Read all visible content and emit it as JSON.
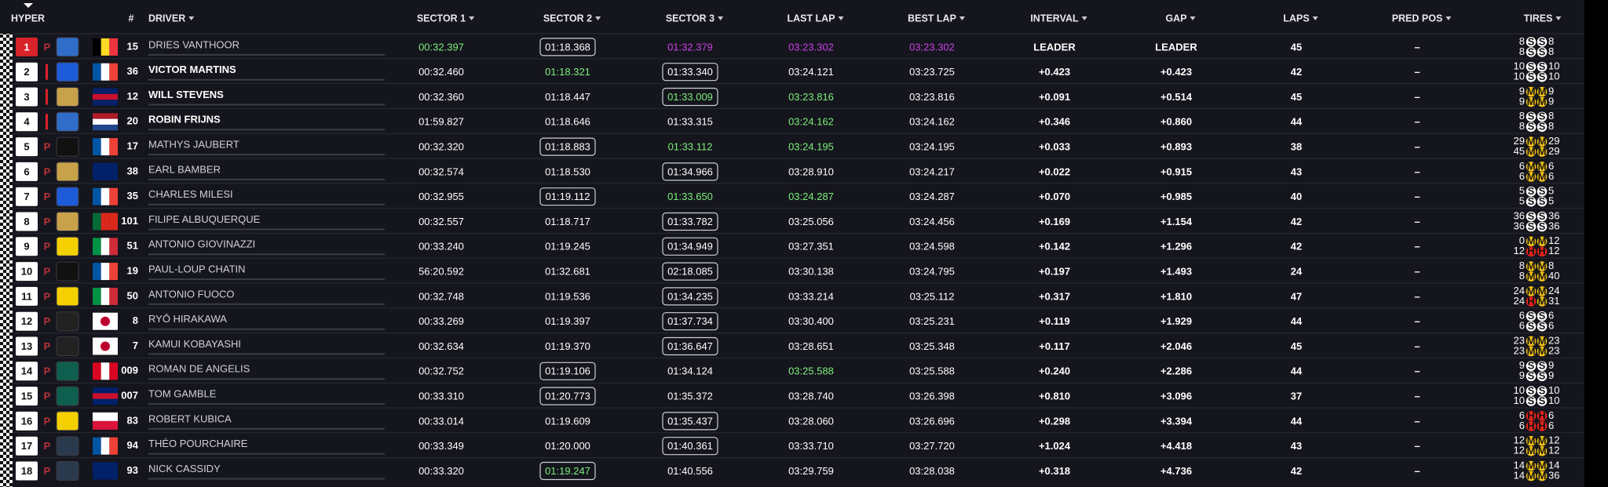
{
  "header": {
    "class": "HYPER",
    "columns": [
      "#",
      "DRIVER",
      "SECTOR 1",
      "SECTOR 2",
      "SECTOR 3",
      "LAST LAP",
      "BEST LAP",
      "INTERVAL",
      "GAP",
      "LAPS",
      "PRED POS",
      "TIRES"
    ]
  },
  "compound_colors": {
    "S": "#ffffff",
    "M": "#f2c318",
    "H": "#e3231b"
  },
  "rows": [
    {
      "pos": "1",
      "pos_color": "#d8232a",
      "pit": "P",
      "logo": "#2f6dc8",
      "flag": [
        "#000000",
        "#fdda24",
        "#ef3340"
      ],
      "flag_dir": "v",
      "num": "15",
      "driver": "DRIES VANTHOOR",
      "times": [
        "00:32.397",
        "01:18.368",
        "01:32.379",
        "03:23.302",
        "03:23.302"
      ],
      "colors": [
        "#7cf07c",
        null,
        "#c940e6",
        "#c940e6",
        "#c940e6"
      ],
      "boxed": [
        false,
        true,
        false,
        false,
        false
      ],
      "interval": "LEADER",
      "gap": "LEADER",
      "laps": "45",
      "pred": "–",
      "tires": [
        [
          "8",
          "S",
          "S",
          "8"
        ],
        [
          "8",
          "S",
          "S",
          "8"
        ]
      ]
    },
    {
      "pos": "2",
      "pit": null,
      "logo": "#1e5bd8",
      "flag": [
        "#0055a4",
        "#ffffff",
        "#ef4135"
      ],
      "flag_dir": "v",
      "num": "36",
      "driver": "VICTOR MARTINS",
      "times": [
        "00:32.460",
        "01:18.321",
        "01:33.340",
        "03:24.121",
        "03:23.725"
      ],
      "colors": [
        null,
        "#7cf07c",
        null,
        null,
        null
      ],
      "boxed": [
        false,
        false,
        true,
        false,
        false
      ],
      "interval": "+0.423",
      "gap": "+0.423",
      "laps": "42",
      "pred": "–",
      "tires": [
        [
          "10",
          "S",
          "S",
          "10"
        ],
        [
          "10",
          "S",
          "S",
          "10"
        ]
      ]
    },
    {
      "pos": "3",
      "pit": null,
      "logo": "#c8a24a",
      "flag": [
        "#012169",
        "#c8102e",
        "#012169"
      ],
      "flag_dir": "h",
      "num": "12",
      "driver": "WILL STEVENS",
      "times": [
        "00:32.360",
        "01:18.447",
        "01:33.009",
        "03:23.816",
        "03:23.816"
      ],
      "colors": [
        null,
        null,
        "#7cf07c",
        "#7cf07c",
        null
      ],
      "boxed": [
        false,
        false,
        true,
        false,
        false
      ],
      "interval": "+0.091",
      "gap": "+0.514",
      "laps": "45",
      "pred": "–",
      "tires": [
        [
          "9",
          "M",
          "M",
          "9"
        ],
        [
          "9",
          "M",
          "M",
          "9"
        ]
      ]
    },
    {
      "pos": "4",
      "pit": null,
      "logo": "#2f6dc8",
      "flag": [
        "#ae1c28",
        "#ffffff",
        "#21468b"
      ],
      "flag_dir": "h",
      "num": "20",
      "driver": "ROBIN FRIJNS",
      "times": [
        "01:59.827",
        "01:18.646",
        "01:33.315",
        "03:24.162",
        "03:24.162"
      ],
      "colors": [
        null,
        null,
        null,
        "#7cf07c",
        null
      ],
      "boxed": [
        false,
        false,
        false,
        false,
        false
      ],
      "interval": "+0.346",
      "gap": "+0.860",
      "laps": "44",
      "pred": "–",
      "tires": [
        [
          "8",
          "S",
          "S",
          "8"
        ],
        [
          "8",
          "S",
          "S",
          "8"
        ]
      ]
    },
    {
      "pos": "5",
      "pit": "P",
      "logo": "#111111",
      "flag": [
        "#0055a4",
        "#ffffff",
        "#ef4135"
      ],
      "flag_dir": "v",
      "num": "17",
      "driver": "MATHYS JAUBERT",
      "times": [
        "00:32.320",
        "01:18.883",
        "01:33.112",
        "03:24.195",
        "03:24.195"
      ],
      "colors": [
        null,
        null,
        "#7cf07c",
        "#7cf07c",
        null
      ],
      "boxed": [
        false,
        true,
        false,
        false,
        false
      ],
      "interval": "+0.033",
      "gap": "+0.893",
      "laps": "38",
      "pred": "–",
      "tires": [
        [
          "29",
          "M",
          "M",
          "29"
        ],
        [
          "45",
          "M",
          "M",
          "29"
        ]
      ]
    },
    {
      "pos": "6",
      "pit": "P",
      "logo": "#c8a24a",
      "flag": [
        "#012169"
      ],
      "flag_dir": "h",
      "num": "38",
      "driver": "EARL BAMBER",
      "times": [
        "00:32.574",
        "01:18.530",
        "01:34.966",
        "03:28.910",
        "03:24.217"
      ],
      "colors": [
        null,
        null,
        null,
        null,
        null
      ],
      "boxed": [
        false,
        false,
        true,
        false,
        false
      ],
      "interval": "+0.022",
      "gap": "+0.915",
      "laps": "43",
      "pred": "–",
      "tires": [
        [
          "6",
          "M",
          "M",
          "6"
        ],
        [
          "6",
          "M",
          "M",
          "6"
        ]
      ]
    },
    {
      "pos": "7",
      "pit": "P",
      "logo": "#1e5bd8",
      "flag": [
        "#0055a4",
        "#ffffff",
        "#ef4135"
      ],
      "flag_dir": "v",
      "num": "35",
      "driver": "CHARLES MILESI",
      "times": [
        "00:32.955",
        "01:19.112",
        "01:33.650",
        "03:24.287",
        "03:24.287"
      ],
      "colors": [
        null,
        null,
        "#7cf07c",
        "#7cf07c",
        null
      ],
      "boxed": [
        false,
        true,
        false,
        false,
        false
      ],
      "interval": "+0.070",
      "gap": "+0.985",
      "laps": "40",
      "pred": "–",
      "tires": [
        [
          "5",
          "S",
          "S",
          "5"
        ],
        [
          "5",
          "S",
          "S",
          "5"
        ]
      ]
    },
    {
      "pos": "8",
      "pit": "P",
      "logo": "#c8a24a",
      "flag": [
        "#046a38",
        "#da291c",
        "#da291c"
      ],
      "flag_dir": "v",
      "num": "101",
      "driver": "FILIPE ALBUQUERQUE",
      "times": [
        "00:32.557",
        "01:18.717",
        "01:33.782",
        "03:25.056",
        "03:24.456"
      ],
      "colors": [
        null,
        null,
        null,
        null,
        null
      ],
      "boxed": [
        false,
        false,
        true,
        false,
        false
      ],
      "interval": "+0.169",
      "gap": "+1.154",
      "laps": "42",
      "pred": "–",
      "tires": [
        [
          "36",
          "S",
          "S",
          "36"
        ],
        [
          "36",
          "S",
          "S",
          "36"
        ]
      ]
    },
    {
      "pos": "9",
      "pit": "P",
      "logo": "#f5d000",
      "flag": [
        "#009246",
        "#ffffff",
        "#ce2b37"
      ],
      "flag_dir": "v",
      "num": "51",
      "driver": "ANTONIO GIOVINAZZI",
      "times": [
        "00:33.240",
        "01:19.245",
        "01:34.949",
        "03:27.351",
        "03:24.598"
      ],
      "colors": [
        null,
        null,
        null,
        null,
        null
      ],
      "boxed": [
        false,
        false,
        true,
        false,
        false
      ],
      "interval": "+0.142",
      "gap": "+1.296",
      "laps": "42",
      "pred": "–",
      "tires": [
        [
          "0",
          "M",
          "M",
          "12"
        ],
        [
          "12",
          "H",
          "H",
          "12"
        ]
      ]
    },
    {
      "pos": "10",
      "pit": "P",
      "logo": "#111111",
      "flag": [
        "#0055a4",
        "#ffffff",
        "#ef4135"
      ],
      "flag_dir": "v",
      "num": "19",
      "driver": "PAUL-LOUP CHATIN",
      "times": [
        "56:20.592",
        "01:32.681",
        "02:18.085",
        "03:30.138",
        "03:24.795"
      ],
      "colors": [
        null,
        null,
        null,
        null,
        null
      ],
      "boxed": [
        false,
        false,
        true,
        false,
        false
      ],
      "interval": "+0.197",
      "gap": "+1.493",
      "laps": "24",
      "pred": "–",
      "tires": [
        [
          "8",
          "M",
          "M",
          "8"
        ],
        [
          "8",
          "M",
          "M",
          "40"
        ]
      ]
    },
    {
      "pos": "11",
      "pit": "P",
      "logo": "#f5d000",
      "flag": [
        "#009246",
        "#ffffff",
        "#ce2b37"
      ],
      "flag_dir": "v",
      "num": "50",
      "driver": "ANTONIO FUOCO",
      "times": [
        "00:32.748",
        "01:19.536",
        "01:34.235",
        "03:33.214",
        "03:25.112"
      ],
      "colors": [
        null,
        null,
        null,
        null,
        null
      ],
      "boxed": [
        false,
        false,
        true,
        false,
        false
      ],
      "interval": "+0.317",
      "gap": "+1.810",
      "laps": "47",
      "pred": "–",
      "tires": [
        [
          "24",
          "M",
          "M",
          "24"
        ],
        [
          "24",
          "H",
          "M",
          "31"
        ]
      ]
    },
    {
      "pos": "12",
      "pit": "P",
      "logo": "#222222",
      "flag": [
        "#ffffff",
        "#bc002d"
      ],
      "flag_dir": "c",
      "num": "8",
      "driver": "RYŌ HIRAKAWA",
      "times": [
        "00:33.269",
        "01:19.397",
        "01:37.734",
        "03:30.400",
        "03:25.231"
      ],
      "colors": [
        null,
        null,
        null,
        null,
        null
      ],
      "boxed": [
        false,
        false,
        true,
        false,
        false
      ],
      "interval": "+0.119",
      "gap": "+1.929",
      "laps": "44",
      "pred": "–",
      "tires": [
        [
          "6",
          "S",
          "S",
          "6"
        ],
        [
          "6",
          "S",
          "S",
          "6"
        ]
      ]
    },
    {
      "pos": "13",
      "pit": "P",
      "logo": "#222222",
      "flag": [
        "#ffffff",
        "#bc002d"
      ],
      "flag_dir": "c",
      "num": "7",
      "driver": "KAMUI KOBAYASHI",
      "times": [
        "00:32.634",
        "01:19.370",
        "01:36.647",
        "03:28.651",
        "03:25.348"
      ],
      "colors": [
        null,
        null,
        null,
        null,
        null
      ],
      "boxed": [
        false,
        false,
        true,
        false,
        false
      ],
      "interval": "+0.117",
      "gap": "+2.046",
      "laps": "45",
      "pred": "–",
      "tires": [
        [
          "23",
          "M",
          "M",
          "23"
        ],
        [
          "23",
          "M",
          "M",
          "23"
        ]
      ]
    },
    {
      "pos": "14",
      "pit": "P",
      "logo": "#0f5f4f",
      "flag": [
        "#d80621",
        "#ffffff",
        "#d80621"
      ],
      "flag_dir": "v",
      "num": "009",
      "driver": "ROMAN DE ANGELIS",
      "times": [
        "00:32.752",
        "01:19.106",
        "01:34.124",
        "03:25.588",
        "03:25.588"
      ],
      "colors": [
        null,
        null,
        null,
        "#7cf07c",
        null
      ],
      "boxed": [
        false,
        true,
        false,
        false,
        false
      ],
      "interval": "+0.240",
      "gap": "+2.286",
      "laps": "44",
      "pred": "–",
      "tires": [
        [
          "9",
          "S",
          "S",
          "9"
        ],
        [
          "9",
          "S",
          "S",
          "9"
        ]
      ]
    },
    {
      "pos": "15",
      "pit": "P",
      "logo": "#0f5f4f",
      "flag": [
        "#012169",
        "#c8102e",
        "#012169"
      ],
      "flag_dir": "h",
      "num": "007",
      "driver": "TOM GAMBLE",
      "times": [
        "00:33.310",
        "01:20.773",
        "01:35.372",
        "03:28.740",
        "03:26.398"
      ],
      "colors": [
        null,
        null,
        null,
        null,
        null
      ],
      "boxed": [
        false,
        true,
        false,
        false,
        false
      ],
      "interval": "+0.810",
      "gap": "+3.096",
      "laps": "37",
      "pred": "–",
      "tires": [
        [
          "10",
          "S",
          "S",
          "10"
        ],
        [
          "10",
          "S",
          "S",
          "10"
        ]
      ]
    },
    {
      "pos": "16",
      "pit": "P",
      "logo": "#f5d000",
      "flag": [
        "#ffffff",
        "#dc143c"
      ],
      "flag_dir": "h",
      "num": "83",
      "driver": "ROBERT KUBICA",
      "times": [
        "00:33.014",
        "01:19.609",
        "01:35.437",
        "03:28.060",
        "03:26.696"
      ],
      "colors": [
        null,
        null,
        null,
        null,
        null
      ],
      "boxed": [
        false,
        false,
        true,
        false,
        false
      ],
      "interval": "+0.298",
      "gap": "+3.394",
      "laps": "44",
      "pred": "–",
      "tires": [
        [
          "6",
          "H",
          "H",
          "6"
        ],
        [
          "6",
          "H",
          "H",
          "6"
        ]
      ]
    },
    {
      "pos": "17",
      "pit": "P",
      "logo": "#2a3a4c",
      "flag": [
        "#0055a4",
        "#ffffff",
        "#ef4135"
      ],
      "flag_dir": "v",
      "num": "94",
      "driver": "THÉO POURCHAIRE",
      "times": [
        "00:33.349",
        "01:20.000",
        "01:40.361",
        "03:33.710",
        "03:27.720"
      ],
      "colors": [
        null,
        null,
        null,
        null,
        null
      ],
      "boxed": [
        false,
        false,
        true,
        false,
        false
      ],
      "interval": "+1.024",
      "gap": "+4.418",
      "laps": "43",
      "pred": "–",
      "tires": [
        [
          "12",
          "M",
          "M",
          "12"
        ],
        [
          "12",
          "M",
          "M",
          "12"
        ]
      ]
    },
    {
      "pos": "18",
      "pit": "P",
      "logo": "#2a3a4c",
      "flag": [
        "#012169"
      ],
      "flag_dir": "h",
      "num": "93",
      "driver": "NICK CASSIDY",
      "times": [
        "00:33.320",
        "01:19.247",
        "01:40.556",
        "03:29.759",
        "03:28.038"
      ],
      "colors": [
        null,
        "#7cf07c",
        null,
        null,
        null
      ],
      "boxed": [
        false,
        true,
        false,
        false,
        false
      ],
      "interval": "+0.318",
      "gap": "+4.736",
      "laps": "42",
      "pred": "–",
      "tires": [
        [
          "14",
          "M",
          "M",
          "14"
        ],
        [
          "14",
          "M",
          "M",
          "36"
        ]
      ]
    }
  ]
}
